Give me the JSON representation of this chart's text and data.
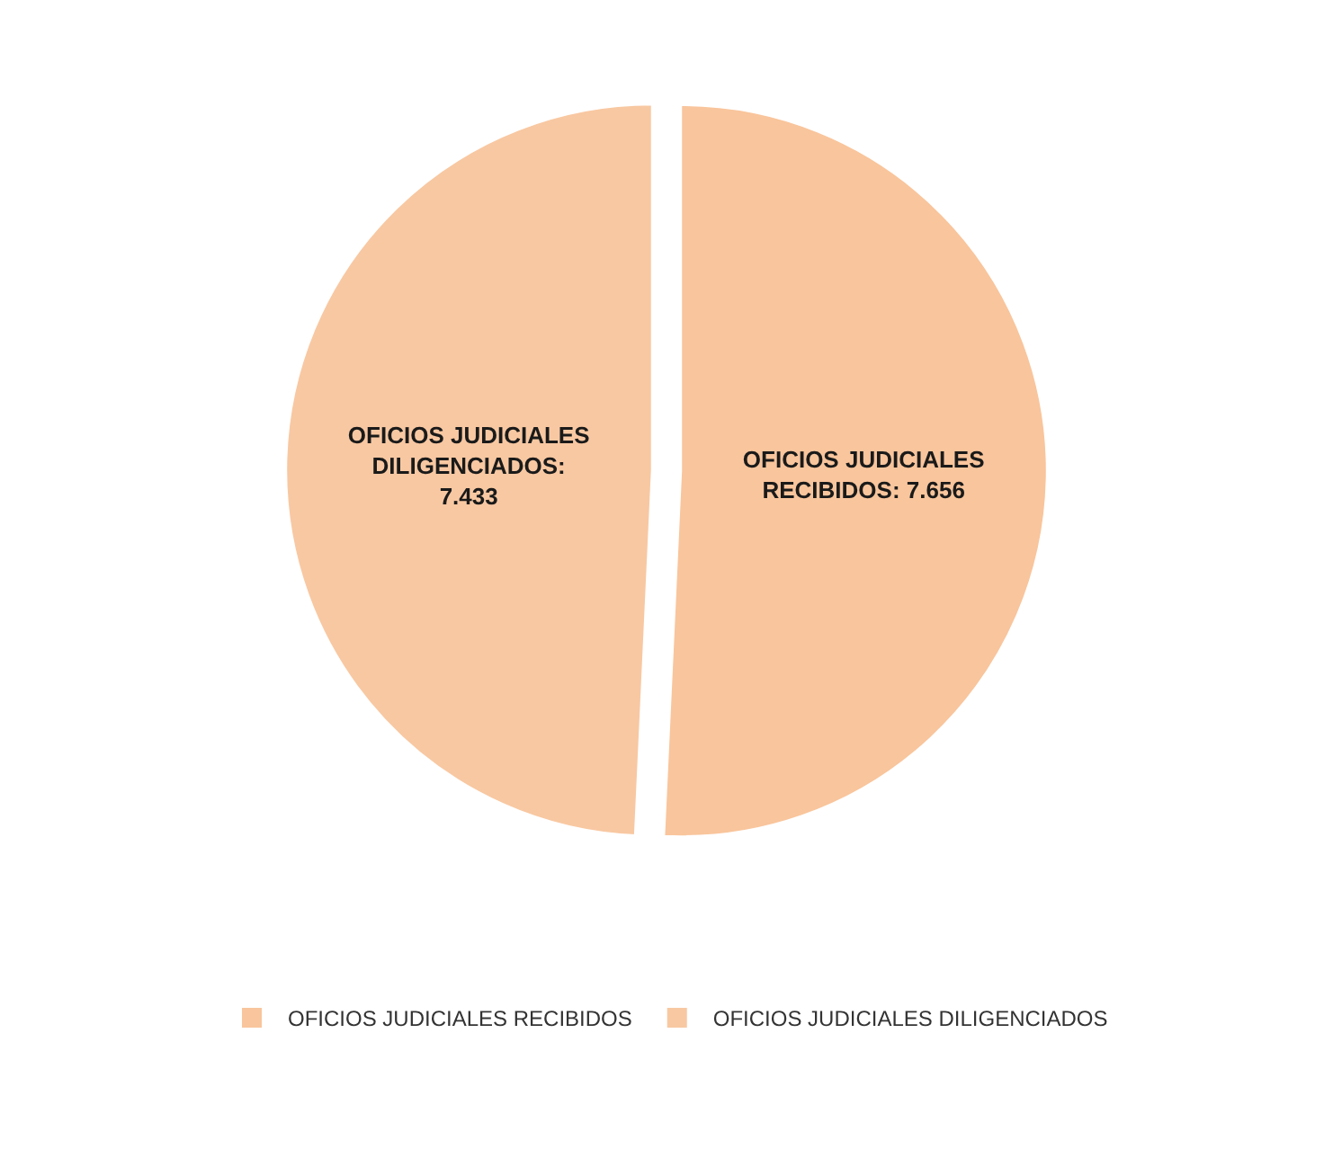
{
  "chart_data": {
    "type": "pie",
    "categories": [
      "OFICIOS JUDICIALES RECIBIDOS",
      "OFICIOS JUDICIALES DILIGENCIADOS"
    ],
    "values": [
      7656,
      7433
    ],
    "value_labels": [
      "OFICIOS JUDICIALES RECIBIDOS: 7.656",
      "OFICIOS JUDICIALES DILIGENCIADOS: 7.433"
    ],
    "colors": [
      "#f9c59c",
      "#f8c8a2"
    ],
    "legend": "bottom"
  }
}
